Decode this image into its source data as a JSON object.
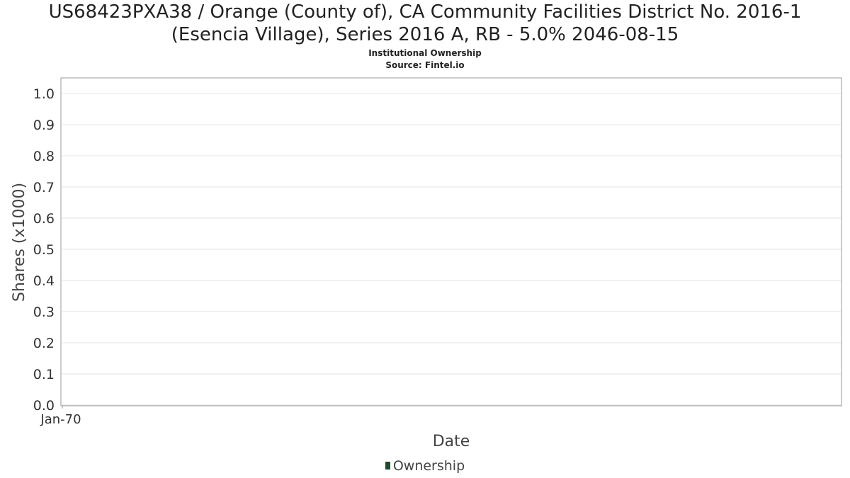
{
  "chart_data": {
    "type": "bar",
    "title_line1": "US68423PXA38 / Orange (County of), CA Community Facilities District No. 2016-1",
    "title_line2": "(Esencia Village), Series 2016 A, RB - 5.0% 2046-08-15",
    "subtitle": "Institutional Ownership",
    "source": "Source: Fintel.io",
    "xlabel": "Date",
    "ylabel": "Shares (x1000)",
    "ylim": [
      0,
      1.0
    ],
    "yticks": [
      "0.0",
      "0.1",
      "0.2",
      "0.3",
      "0.4",
      "0.5",
      "0.6",
      "0.7",
      "0.8",
      "0.9",
      "1.0"
    ],
    "xticks": [
      "Jan-70"
    ],
    "grid": true,
    "legend_position": "bottom",
    "series": [
      {
        "name": "Ownership",
        "color": "#1e4d2b",
        "values": []
      }
    ]
  }
}
